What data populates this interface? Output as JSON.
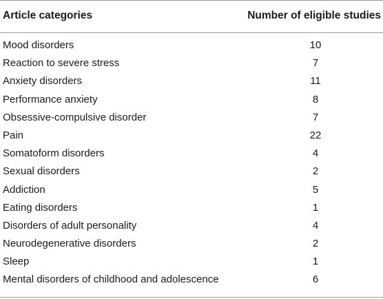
{
  "table": {
    "headers": {
      "category": "Article categories",
      "count": "Number of eligible studies"
    },
    "rows": [
      {
        "category": "Mood disorders",
        "count": "10"
      },
      {
        "category": "Reaction to severe stress",
        "count": "7"
      },
      {
        "category": "Anxiety disorders",
        "count": "11"
      },
      {
        "category": "Performance anxiety",
        "count": "8"
      },
      {
        "category": "Obsessive-compulsive disorder",
        "count": "7"
      },
      {
        "category": "Pain",
        "count": "22"
      },
      {
        "category": "Somatoform disorders",
        "count": "4"
      },
      {
        "category": "Sexual disorders",
        "count": "2"
      },
      {
        "category": "Addiction",
        "count": "5"
      },
      {
        "category": "Eating disorders",
        "count": "1"
      },
      {
        "category": "Disorders of adult personality",
        "count": "4"
      },
      {
        "category": "Neurodegenerative disorders",
        "count": "2"
      },
      {
        "category": "Sleep",
        "count": "1"
      },
      {
        "category": "Mental disorders of childhood and adolescence",
        "count": "6"
      }
    ]
  }
}
